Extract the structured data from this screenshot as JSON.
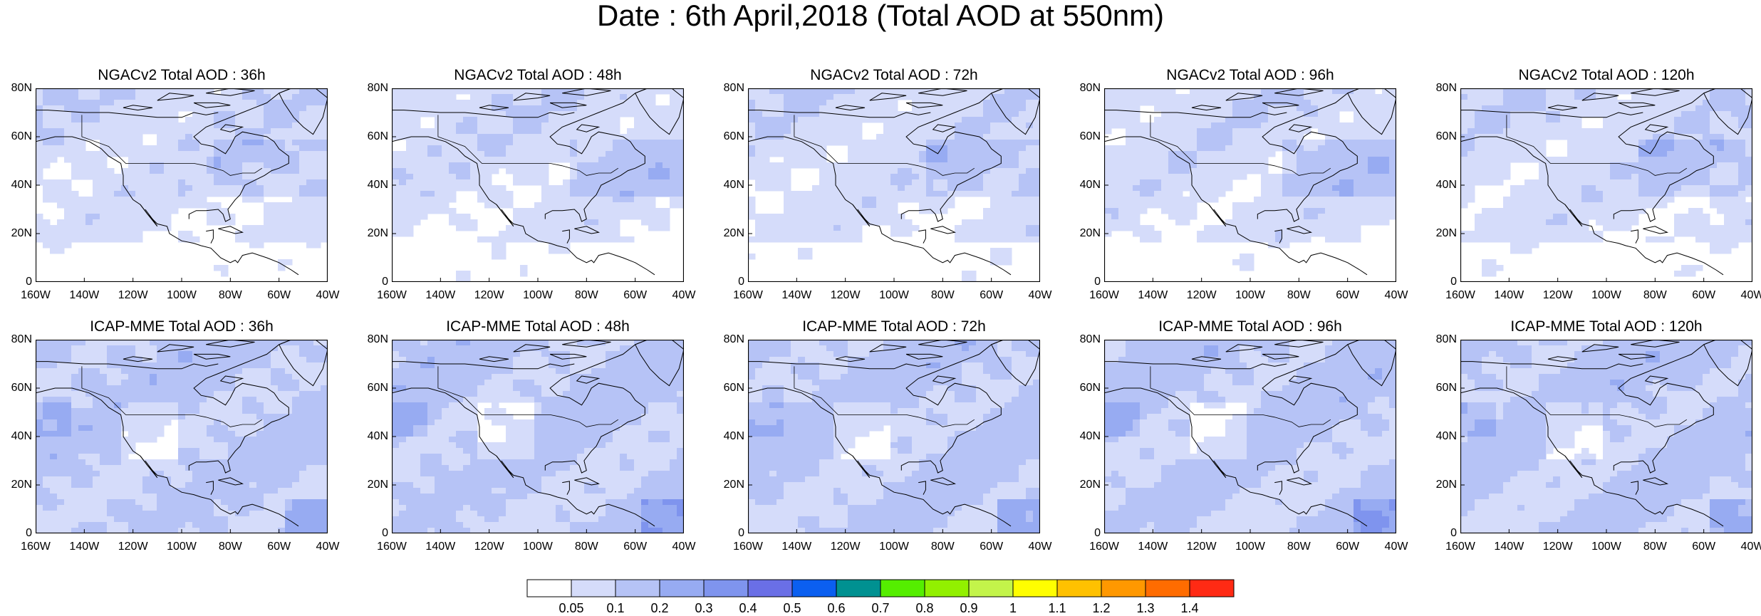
{
  "title": "Date : 6th April,2018 (Total AOD at 550nm)",
  "panels": [
    {
      "title": "NGACv2 Total AOD : 36h",
      "model": "ngac"
    },
    {
      "title": "NGACv2 Total AOD : 48h",
      "model": "ngac"
    },
    {
      "title": "NGACv2 Total AOD : 72h",
      "model": "ngac"
    },
    {
      "title": "NGACv2 Total AOD : 96h",
      "model": "ngac"
    },
    {
      "title": "NGACv2 Total AOD : 120h",
      "model": "ngac"
    },
    {
      "title": "ICAP-MME Total AOD : 36h",
      "model": "icap"
    },
    {
      "title": "ICAP-MME Total AOD : 48h",
      "model": "icap"
    },
    {
      "title": "ICAP-MME Total AOD : 72h",
      "model": "icap"
    },
    {
      "title": "ICAP-MME Total AOD : 96h",
      "model": "icap"
    },
    {
      "title": "ICAP-MME Total AOD : 120h",
      "model": "icap"
    }
  ],
  "axes": {
    "lat_labels": [
      "80N",
      "60N",
      "40N",
      "20N",
      "0"
    ],
    "lon_labels": [
      "160W",
      "140W",
      "120W",
      "100W",
      "80W",
      "60W",
      "40W"
    ],
    "lat_range": [
      0,
      80
    ],
    "lon_range": [
      -160,
      -40
    ]
  },
  "colorbar": {
    "labels": [
      "0.05",
      "0.1",
      "0.2",
      "0.3",
      "0.4",
      "0.5",
      "0.6",
      "0.7",
      "0.8",
      "0.9",
      "1",
      "1.1",
      "1.2",
      "1.3",
      "1.4"
    ],
    "colors": [
      "#ffffff",
      "#d5dcfa",
      "#b6c3f6",
      "#97abf2",
      "#7f94ee",
      "#6a6fe6",
      "#0b5ff0",
      "#009191",
      "#55ee00",
      "#92f000",
      "#c3f44a",
      "#fffe00",
      "#ffc100",
      "#ff9800",
      "#ff6c00",
      "#ff2a14"
    ]
  }
}
